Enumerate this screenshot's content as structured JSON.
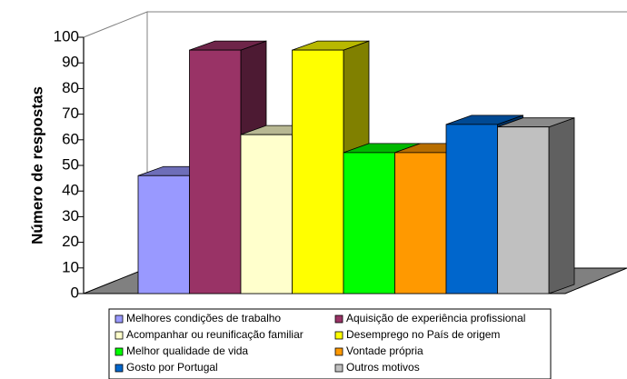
{
  "chart_data": {
    "type": "bar",
    "three_d": true,
    "ylabel": "Número de respostas",
    "xlabel": "",
    "title": "",
    "ylim": [
      0,
      100
    ],
    "yticks": [
      0,
      10,
      20,
      30,
      40,
      50,
      60,
      70,
      80,
      90,
      100
    ],
    "grid": false,
    "legend_position": "bottom",
    "series": [
      {
        "name": "Melhores condições de trabalho",
        "value": 46,
        "color": "#9999ff"
      },
      {
        "name": "Aquisição de experiência profissional",
        "value": 95,
        "color": "#993366"
      },
      {
        "name": "Acompanhar ou reunificação familiar",
        "value": 62,
        "color": "#ffffcc"
      },
      {
        "name": "Desemprego no País de origem",
        "value": 95,
        "color": "#ffff00"
      },
      {
        "name": "Melhor qualidade de vida",
        "value": 55,
        "color": "#00ff00"
      },
      {
        "name": "Vontade própria",
        "value": 55,
        "color": "#ff9900"
      },
      {
        "name": "Gosto por Portugal",
        "value": 66,
        "color": "#0066cc"
      },
      {
        "name": "Outros motivos",
        "value": 65,
        "color": "#c0c0c0"
      }
    ]
  }
}
